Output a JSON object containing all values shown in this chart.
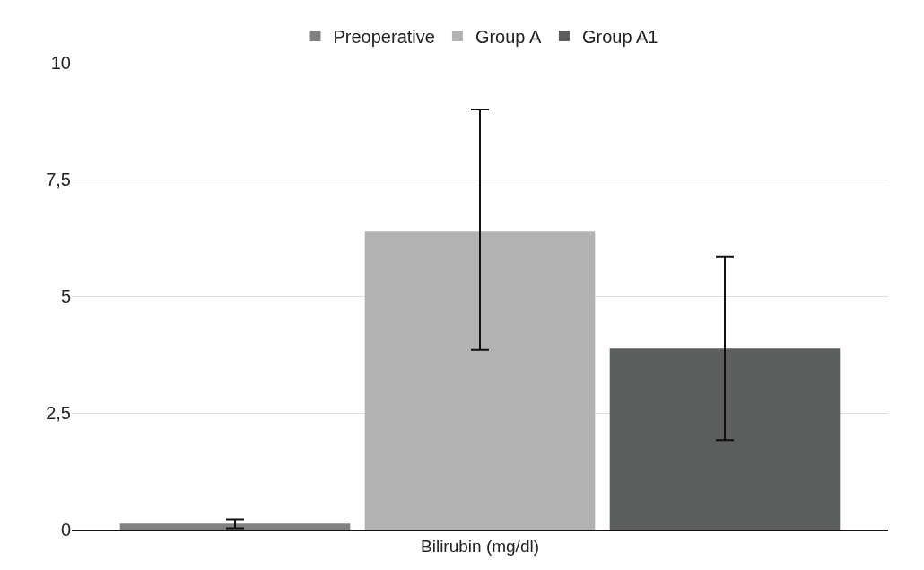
{
  "chart_data": {
    "type": "bar",
    "categories": [
      "Bilirubin (mg/dl)"
    ],
    "series": [
      {
        "name": "Preoperative",
        "color": "#7f8280",
        "values": [
          0.13
        ],
        "errors": [
          [
            0.03,
            0.22
          ]
        ]
      },
      {
        "name": "Group A",
        "color": "#b2b2b2",
        "values": [
          6.4
        ],
        "errors": [
          [
            3.85,
            9.0
          ]
        ]
      },
      {
        "name": "Group A1",
        "color": "#5b5e5d",
        "values": [
          3.88
        ],
        "errors": [
          [
            1.92,
            5.85
          ]
        ]
      }
    ],
    "ylim": [
      0,
      10
    ],
    "yticks": [
      0,
      {
        "value": 2.5,
        "label": "2,5"
      },
      5,
      {
        "value": 7.5,
        "label": "7,5"
      },
      10
    ],
    "grid": "y",
    "legend": "top"
  }
}
